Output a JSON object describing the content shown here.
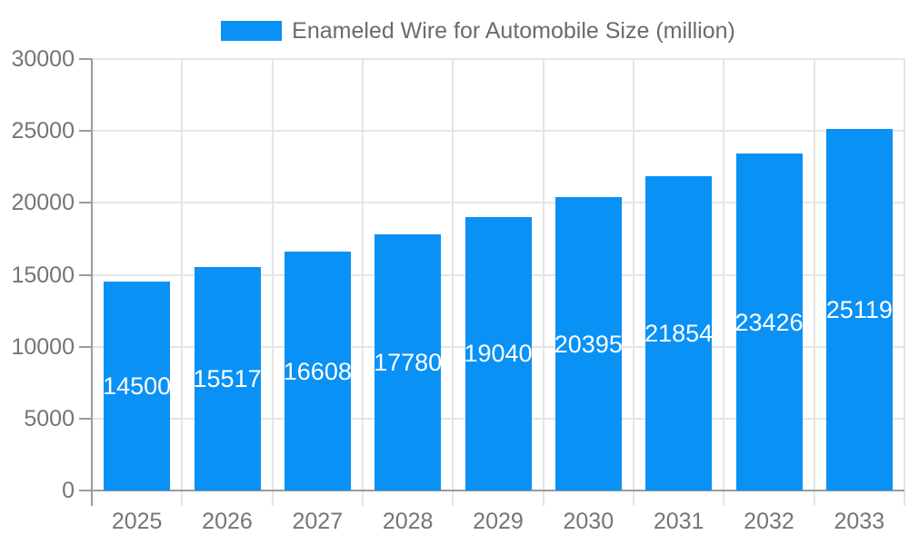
{
  "legend": {
    "position": "top"
  },
  "chart_data": {
    "type": "bar",
    "title": "",
    "series_name": "Enameled Wire for Automobile Size (million)",
    "categories": [
      "2025",
      "2026",
      "2027",
      "2028",
      "2029",
      "2030",
      "2031",
      "2032",
      "2033"
    ],
    "values": [
      14500,
      15517,
      16608,
      17780,
      19040,
      20395,
      21854,
      23426,
      25119
    ],
    "xlabel": "",
    "ylabel": "",
    "ylim": [
      0,
      30000
    ],
    "yticks": [
      0,
      5000,
      10000,
      15000,
      20000,
      25000,
      30000
    ],
    "grid": true,
    "legend_position": "top",
    "bar_labels_shown": true,
    "colors": {
      "bar": "#0A91F5",
      "bar_label": "#ffffff",
      "grid": "#e5e5e5",
      "axis": "#9b9b9b",
      "tick_label": "#757575",
      "legend_text": "#6b6b6b",
      "background": "#ffffff"
    }
  }
}
